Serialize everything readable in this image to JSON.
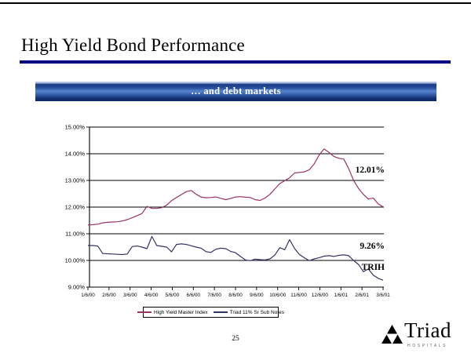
{
  "slide": {
    "title": "High Yield Bond Performance",
    "banner": "… and debt markets",
    "page_number": "25"
  },
  "annotations": {
    "hy_final_value": "12.01%",
    "triad_final_value": "9.26%",
    "ticker": "TRIH"
  },
  "logo": {
    "name": "Triad",
    "subtext": "HOSPITALS"
  },
  "colors": {
    "title_rule": "#000080",
    "banner_blue": "#2c54a4",
    "hy_line": "#993366",
    "triad_line": "#333366",
    "grid": "#000000"
  },
  "chart_data": {
    "type": "line",
    "title": "",
    "xlabel": "",
    "ylabel": "",
    "ylim": [
      9,
      15
    ],
    "grid": true,
    "legend_position": "bottom",
    "y_ticks": [
      "15.00%",
      "14.00%",
      "13.00%",
      "12.00%",
      "11.00%",
      "10.00%",
      "9.00%"
    ],
    "x_labels": [
      "1/6/00",
      "2/6/00",
      "3/6/00",
      "4/6/00",
      "5/6/00",
      "6/6/00",
      "7/6/00",
      "8/6/00",
      "9/6/00",
      "10/6/00",
      "11/6/00",
      "12/6/00",
      "1/6/01",
      "2/6/01",
      "3/6/01"
    ],
    "series": [
      {
        "name": "High Yield Master Index",
        "color": "#993366",
        "final_label": "12.01%",
        "values": [
          11.33,
          11.34,
          11.36,
          11.41,
          11.43,
          11.44,
          11.45,
          11.48,
          11.53,
          11.6,
          11.68,
          11.76,
          12.03,
          11.95,
          11.95,
          11.98,
          12.07,
          12.24,
          12.36,
          12.47,
          12.58,
          12.62,
          12.48,
          12.38,
          12.35,
          12.36,
          12.38,
          12.33,
          12.28,
          12.32,
          12.38,
          12.39,
          12.37,
          12.36,
          12.28,
          12.25,
          12.34,
          12.48,
          12.68,
          12.88,
          12.99,
          13.1,
          13.28,
          13.3,
          13.32,
          13.4,
          13.62,
          13.95,
          14.18,
          14.05,
          13.9,
          13.83,
          13.8,
          13.45,
          13.0,
          12.7,
          12.48,
          12.3,
          12.34,
          12.12,
          12.01
        ]
      },
      {
        "name": "Triad 11% Sr Sub Notes",
        "color": "#333366",
        "final_label": "9.26%",
        "values": [
          10.56,
          10.56,
          10.54,
          10.26,
          10.25,
          10.24,
          10.23,
          10.22,
          10.24,
          10.52,
          10.54,
          10.5,
          10.44,
          10.9,
          10.56,
          10.53,
          10.5,
          10.32,
          10.6,
          10.62,
          10.6,
          10.55,
          10.5,
          10.46,
          10.33,
          10.3,
          10.42,
          10.46,
          10.44,
          10.34,
          10.29,
          10.15,
          10.02,
          9.99,
          10.05,
          10.03,
          10.02,
          10.06,
          10.2,
          10.48,
          10.4,
          10.78,
          10.45,
          10.22,
          10.1,
          9.99,
          10.06,
          10.1,
          10.16,
          10.18,
          10.15,
          10.19,
          10.21,
          10.18,
          10.0,
          9.85,
          9.58,
          9.68,
          9.45,
          9.33,
          9.26
        ]
      }
    ]
  }
}
